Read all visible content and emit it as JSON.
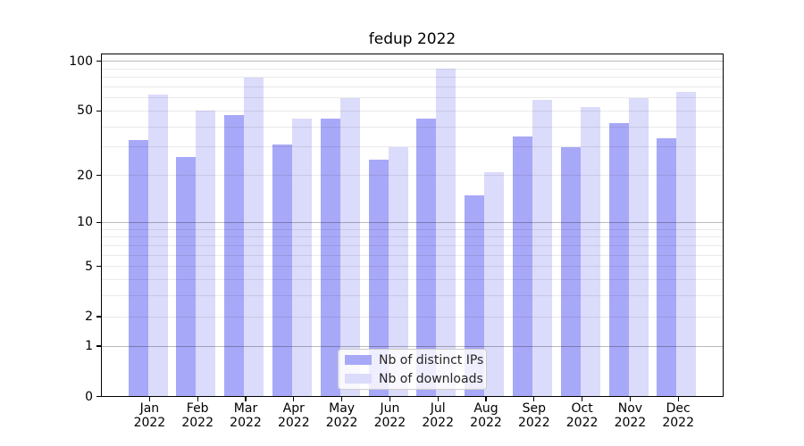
{
  "chart_data": {
    "type": "bar",
    "title": "fedup 2022",
    "categories": [
      "Jan 2022",
      "Feb 2022",
      "Mar 2022",
      "Apr 2022",
      "May 2022",
      "Jun 2022",
      "Jul 2022",
      "Aug 2022",
      "Sep 2022",
      "Oct 2022",
      "Nov 2022",
      "Dec 2022"
    ],
    "series": [
      {
        "name": "Nb of distinct IPs",
        "color": "#a8a8f8",
        "values": [
          33,
          26,
          47,
          31,
          45,
          25,
          45,
          15,
          35,
          30,
          42,
          34
        ]
      },
      {
        "name": "Nb of downloads",
        "color": "#dbdbfb",
        "values": [
          63,
          50,
          80,
          45,
          60,
          30,
          90,
          21,
          58,
          53,
          60,
          65
        ]
      }
    ],
    "xlabel": "",
    "ylabel": "",
    "yscale": "log1p",
    "ylim": [
      0,
      111
    ],
    "y_tick_labels": [
      0,
      1,
      2,
      5,
      10,
      20,
      50,
      100
    ],
    "y_major_gridlines": [
      1,
      10,
      100
    ],
    "y_minor_gridlines": [
      2,
      3,
      4,
      5,
      6,
      7,
      8,
      9,
      20,
      30,
      40,
      50,
      60,
      70,
      80,
      90
    ],
    "grid": "on, drawn above bars",
    "legend_position": "lower center"
  },
  "legend": {
    "items": [
      {
        "label": "Nb of distinct IPs",
        "color": "#a8a8f8"
      },
      {
        "label": "Nb of downloads",
        "color": "#dbdbfb"
      }
    ]
  },
  "colors": {
    "background": "#ffffff",
    "axis": "#000000",
    "major_grid": "#b9b9b9",
    "minor_grid": "#e9e9e9",
    "legend_border": "#cccccc",
    "text": "#000000"
  }
}
